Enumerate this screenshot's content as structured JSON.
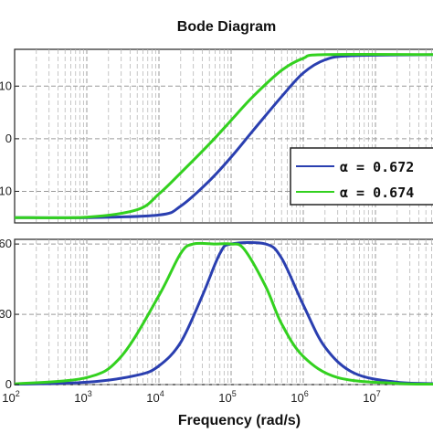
{
  "chart_data": {
    "title": "Bode Diagram",
    "xlabel": "Frequency  (rad/s)",
    "xscale": "log",
    "xlim": [
      100,
      100000000
    ],
    "x_tick_labels": [
      {
        "base": "10",
        "exp": "2"
      },
      {
        "base": "10",
        "exp": "3"
      },
      {
        "base": "10",
        "exp": "4"
      },
      {
        "base": "10",
        "exp": "5"
      },
      {
        "base": "10",
        "exp": "6"
      },
      {
        "base": "10",
        "exp": "7"
      }
    ],
    "grid": true,
    "legend_placement": "right, over magnitude panel",
    "panels": [
      {
        "name": "magnitude",
        "type": "line",
        "ylim": [
          -16,
          17
        ],
        "y_tick_labels": [
          "10",
          "0",
          "10"
        ],
        "series": [
          {
            "name": "α = 0.672",
            "color": "#2a3fb0",
            "x": [
              100,
              1000,
              10000,
              20000,
              50000,
              100000,
              200000,
              500000,
              1000000,
              2000000,
              5000000,
              100000000
            ],
            "y": [
              -15.0,
              -15.0,
              -14.5,
              -12.8,
              -8.0,
              -3.5,
              1.5,
              8.0,
              12.5,
              15.0,
              15.8,
              16.0
            ]
          },
          {
            "name": "α = 0.674",
            "color": "#33d11f",
            "x": [
              100,
              1000,
              5000,
              10000,
              20000,
              50000,
              100000,
              200000,
              500000,
              1000000,
              2000000,
              100000000
            ],
            "y": [
              -15.0,
              -14.9,
              -13.5,
              -10.5,
              -6.5,
              -1.0,
              3.5,
              8.0,
              13.0,
              15.3,
              16.0,
              16.0
            ]
          }
        ]
      },
      {
        "name": "phase",
        "type": "line",
        "ylim": [
          0,
          62
        ],
        "y_tick_labels": [
          "60",
          "30",
          "0"
        ],
        "series": [
          {
            "name": "α = 0.672",
            "color": "#2a3fb0",
            "x": [
              100,
              1000,
              5000,
              10000,
              20000,
              40000,
              70000,
              100000,
              300000,
              500000,
              1000000,
              2000000,
              5000000,
              20000000,
              100000000
            ],
            "y": [
              0.2,
              1.0,
              4.0,
              8.0,
              18.0,
              38.0,
              56.0,
              60.0,
              60.0,
              54.0,
              34.0,
              16.0,
              5.0,
              1.0,
              0.3
            ]
          },
          {
            "name": "α = 0.674",
            "color": "#33d11f",
            "x": [
              100,
              1000,
              3000,
              10000,
              20000,
              30000,
              60000,
              100000,
              150000,
              300000,
              500000,
              1000000,
              3000000,
              20000000,
              100000000
            ],
            "y": [
              0.3,
              3.0,
              12.0,
              38.0,
              56.0,
              60.0,
              60.0,
              60.0,
              58.0,
              42.0,
              26.0,
              12.0,
              3.0,
              0.5,
              0.2
            ]
          }
        ]
      }
    ],
    "legend": [
      "α = 0.672",
      "α = 0.674"
    ]
  }
}
